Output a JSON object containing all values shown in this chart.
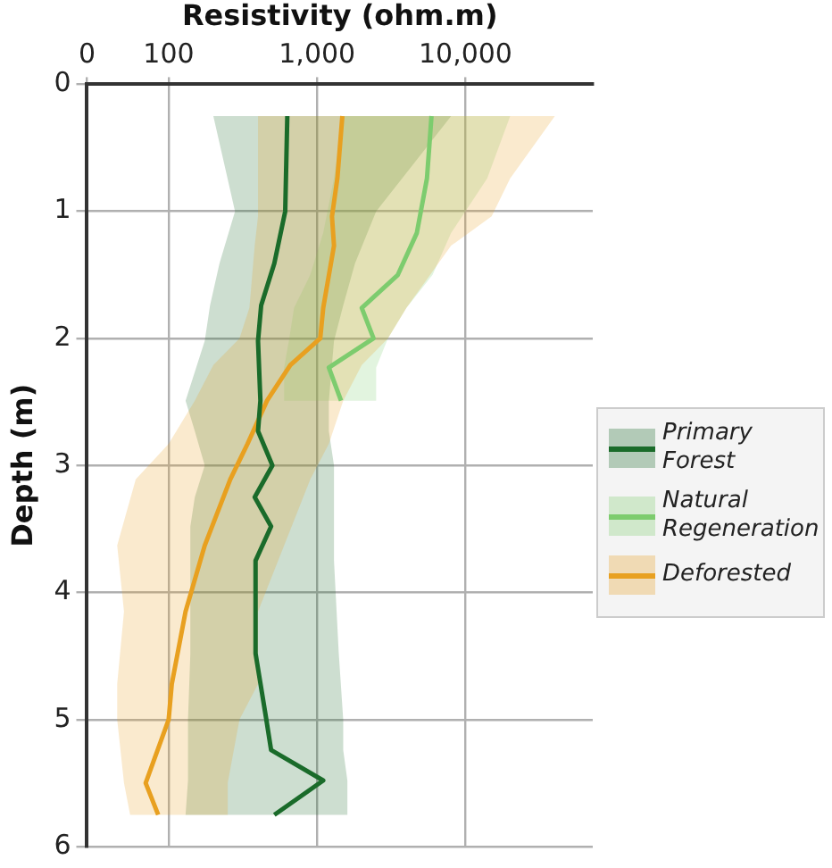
{
  "chart_data": {
    "type": "line",
    "orientation": "horizontal",
    "xlabel": "Resistivity (ohm.m)",
    "ylabel": "Depth (m)",
    "xlim": [
      0,
      72000
    ],
    "xticks": [
      0,
      {
        "value": 100,
        "label": "100"
      },
      {
        "value": 1000,
        "label": "1,000"
      },
      {
        "value": 10000,
        "label": "10,000"
      }
    ],
    "ylim": [
      6,
      0
    ],
    "yticks": [
      0,
      1,
      2,
      3,
      4,
      5,
      6
    ],
    "log": "x",
    "grid": true,
    "legend": "right",
    "series": [
      {
        "name": "Primary Forest",
        "color": "#1a6b2a",
        "x": [
          0.25,
          1.0,
          1.41,
          1.74,
          2.02,
          2.49,
          2.73,
          3.0,
          3.25,
          3.48,
          3.75,
          4.48,
          5.0,
          5.24,
          5.48,
          5.75
        ],
        "values": [
          630,
          610,
          515,
          420,
          400,
          415,
          400,
          500,
          380,
          490,
          385,
          385,
          455,
          490,
          1100,
          515
        ],
        "lower": [
          200,
          280,
          220,
          190,
          175,
          130,
          150,
          175,
          150,
          140,
          140,
          140,
          135,
          135,
          135,
          130
        ],
        "upper": [
          8000,
          2500,
          1800,
          1500,
          1300,
          1200,
          1200,
          1300,
          1300,
          1300,
          1300,
          1400,
          1500,
          1500,
          1600,
          1600
        ]
      },
      {
        "name": "Natural Regeneration",
        "color": "#7dcc6e",
        "x": [
          0.25,
          0.74,
          1.17,
          1.5,
          1.76,
          2.0,
          2.23,
          2.49
        ],
        "values": [
          5900,
          5500,
          4700,
          3500,
          2000,
          2400,
          1200,
          1450
        ],
        "lower": [
          1500,
          1300,
          1100,
          900,
          700,
          650,
          600,
          600
        ],
        "upper": [
          20000,
          14000,
          8000,
          6000,
          4000,
          3000,
          2500,
          2500
        ]
      },
      {
        "name": "Deforested",
        "color": "#e8a020",
        "x": [
          0.25,
          0.74,
          1.04,
          1.27,
          1.76,
          2.0,
          2.21,
          2.49,
          2.83,
          3.11,
          3.63,
          4.15,
          4.72,
          5.0,
          5.5,
          5.75
        ],
        "values": [
          1480,
          1370,
          1260,
          1300,
          1100,
          1050,
          660,
          460,
          340,
          260,
          175,
          130,
          105,
          100,
          70,
          85
        ],
        "lower": [
          400,
          400,
          400,
          380,
          350,
          300,
          200,
          150,
          100,
          60,
          45,
          50,
          45,
          45,
          50,
          55
        ],
        "upper": [
          40000,
          20000,
          15000,
          8000,
          4000,
          3000,
          2000,
          1500,
          1200,
          900,
          600,
          400,
          400,
          300,
          250,
          250
        ]
      }
    ]
  }
}
